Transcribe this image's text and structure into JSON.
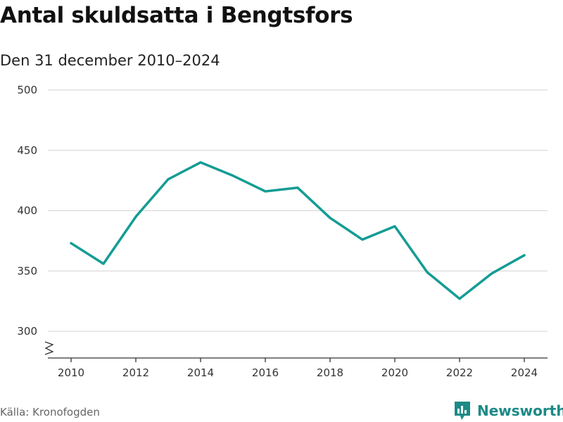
{
  "header": {
    "title": "Antal skuldsatta i Bengtsfors",
    "subtitle": "Den 31 december 2010–2024"
  },
  "footer": {
    "source": "Källa: Kronofogden",
    "brand": "Newsworthy"
  },
  "colors": {
    "line": "#149c94",
    "grid": "#d9d9d9",
    "axis": "#333333",
    "brand": "#1c8a86"
  },
  "icons": {
    "brand_logo": "bar-chart-speech-bubble-icon",
    "axis_break": "zigzag-break-icon"
  },
  "chart_data": {
    "type": "line",
    "title": "Antal skuldsatta i Bengtsfors",
    "subtitle": "Den 31 december 2010–2024",
    "xlabel": "",
    "ylabel": "",
    "x": [
      2010,
      2011,
      2012,
      2013,
      2014,
      2015,
      2016,
      2017,
      2018,
      2019,
      2020,
      2021,
      2022,
      2023,
      2024
    ],
    "series": [
      {
        "name": "Antal skuldsatta",
        "values": [
          373,
          356,
          395,
          426,
          440,
          429,
          416,
          419,
          394,
          376,
          387,
          349,
          327,
          348,
          363
        ]
      }
    ],
    "xticks": [
      2010,
      2012,
      2014,
      2016,
      2018,
      2020,
      2022,
      2024
    ],
    "yticks": [
      300,
      350,
      400,
      450,
      500
    ],
    "ylim": [
      300,
      500
    ],
    "xlim": [
      2010,
      2024
    ],
    "grid": true,
    "axis_break": true
  }
}
